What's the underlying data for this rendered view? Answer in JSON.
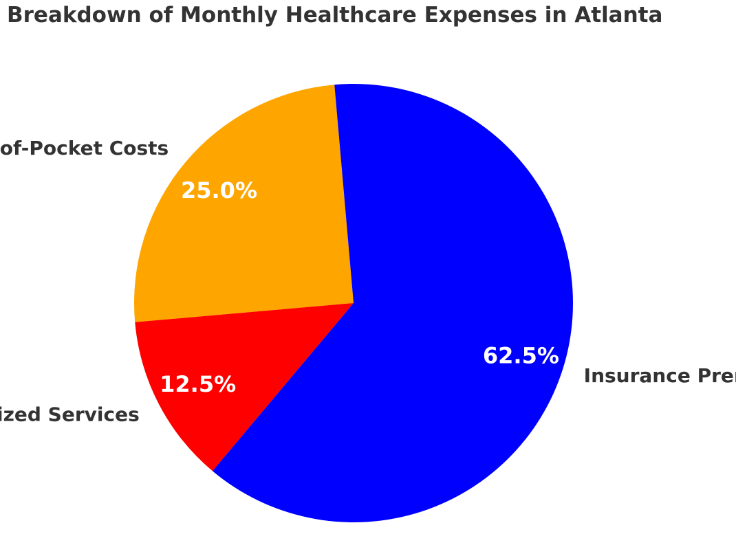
{
  "chart_data": {
    "type": "pie",
    "title": "Breakdown of Monthly Healthcare Expenses in Atlanta",
    "slices": [
      {
        "label": "Out-of-Pocket Costs",
        "value": 25.0,
        "pct_label": "25.0%",
        "color": "#FFA500"
      },
      {
        "label": "Specialized Services",
        "value": 12.5,
        "pct_label": "12.5%",
        "color": "#FF0000"
      },
      {
        "label": "Insurance Premiums",
        "value": 62.5,
        "pct_label": "62.5%",
        "color": "#0000FF"
      }
    ],
    "legend": "none"
  }
}
